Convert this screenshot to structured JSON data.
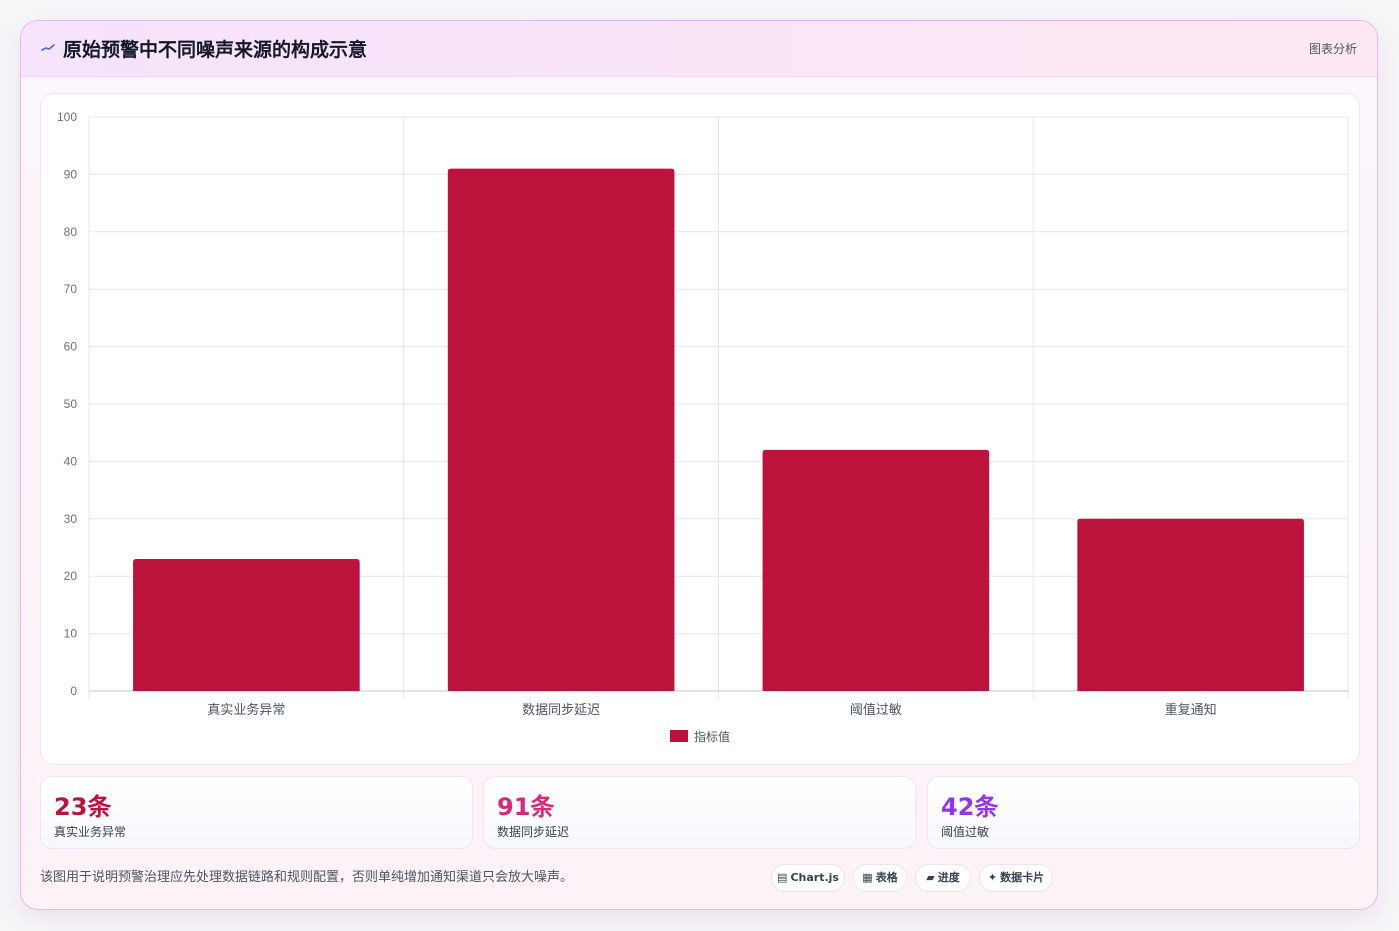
{
  "header": {
    "title": "原始预警中不同噪声来源的构成示意",
    "meta": "图表分析",
    "icon": "trend-line-icon"
  },
  "chart_data": {
    "type": "bar",
    "categories": [
      "真实业务异常",
      "数据同步延迟",
      "阈值过敏",
      "重复通知"
    ],
    "series": [
      {
        "name": "指标值",
        "values": [
          23,
          91,
          42,
          30
        ]
      }
    ],
    "ylim": [
      0,
      100
    ],
    "yticks": [
      "0",
      "10",
      "20",
      "30",
      "40",
      "50",
      "60",
      "70",
      "80",
      "90",
      "100"
    ],
    "grid": true,
    "legend_position": "bottom",
    "bar_color": "#bc133d"
  },
  "stats": [
    {
      "value": "23条",
      "label": "真实业务异常",
      "color": "#be123c"
    },
    {
      "value": "91条",
      "label": "数据同步延迟",
      "color": "#db2777"
    },
    {
      "value": "42条",
      "label": "阈值过敏",
      "color": "#9333ea"
    }
  ],
  "footer": {
    "text": "该图用于说明预警治理应先处理数据链路和规则配置，否则单纯增加通知渠道只会放大噪声。",
    "tags": [
      {
        "icon": "▤",
        "icon_name": "chart-icon",
        "label": "Chart.js"
      },
      {
        "icon": "▦",
        "icon_name": "table-icon",
        "label": "表格"
      },
      {
        "icon": "▰",
        "icon_name": "progress-icon",
        "label": "进度"
      },
      {
        "icon": "✦",
        "icon_name": "sparkle-icon",
        "label": "数据卡片"
      }
    ]
  }
}
